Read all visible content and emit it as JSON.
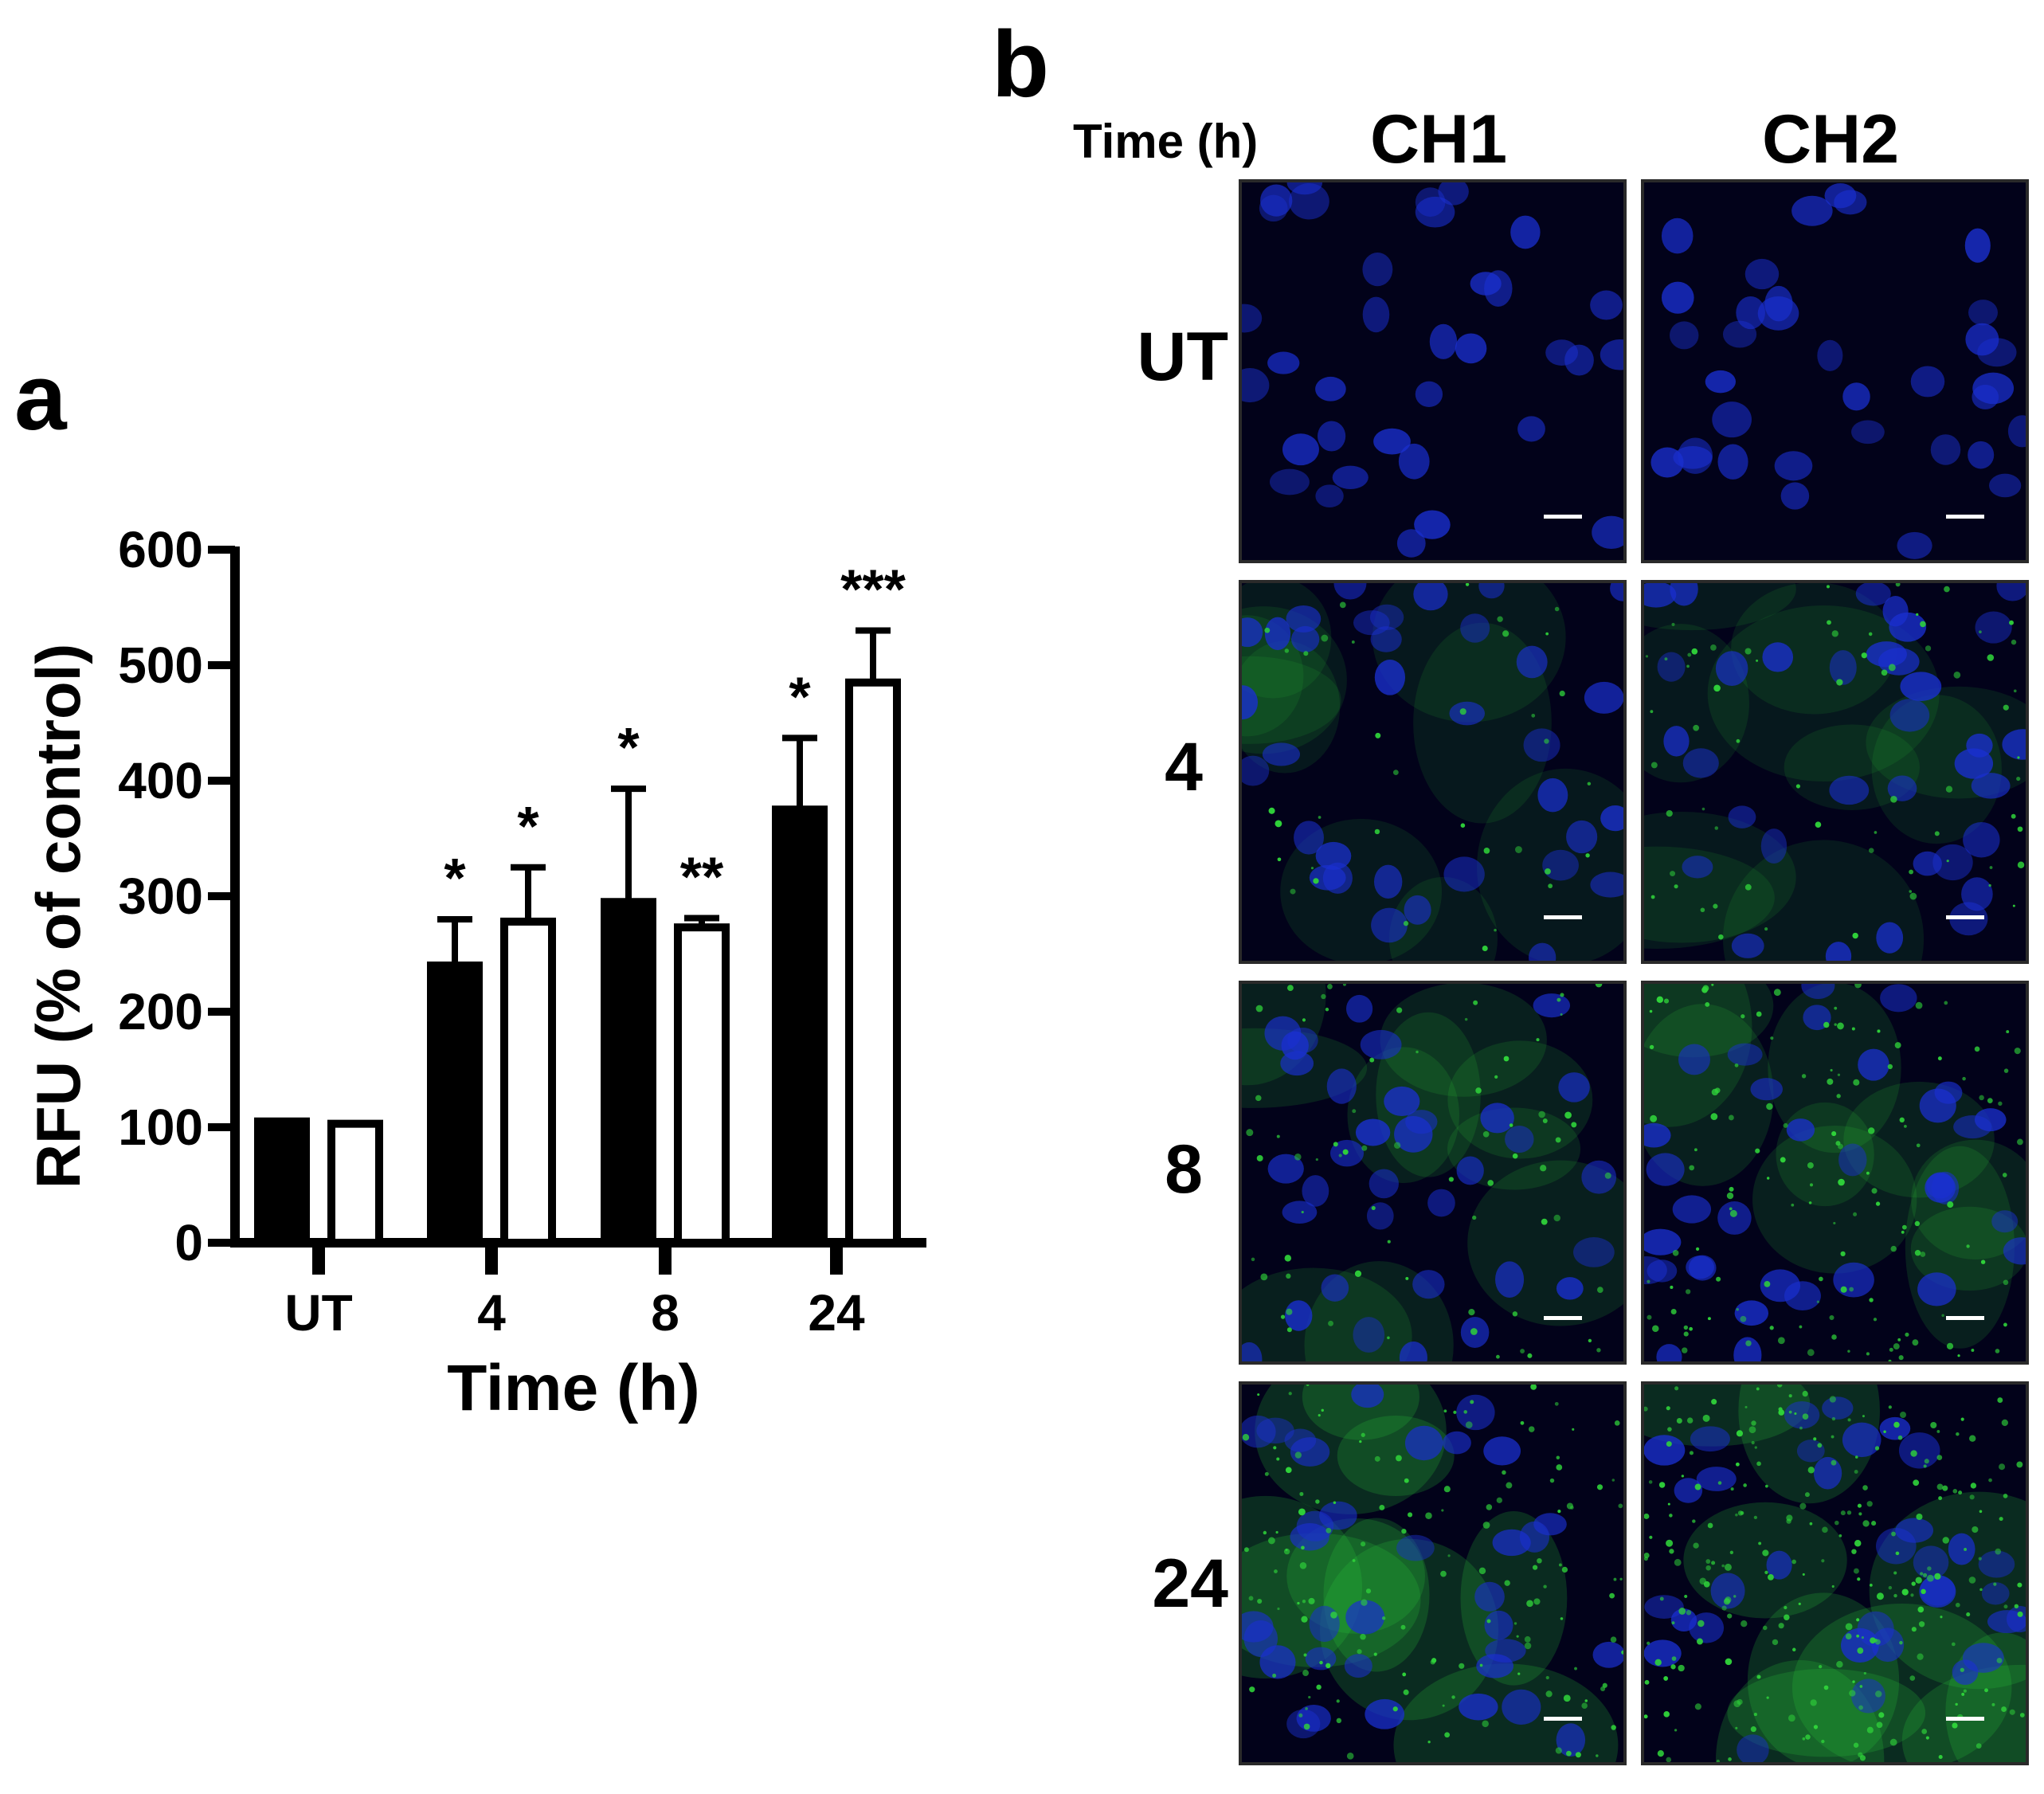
{
  "panel_a": {
    "letter": "a"
  },
  "panel_b": {
    "letter": "b",
    "time_header": "Time (h)",
    "columns": [
      "CH1",
      "CH2"
    ],
    "rows": [
      "UT",
      "4",
      "8",
      "24"
    ]
  },
  "colors": {
    "bar_ch1": "#000000",
    "bar_ch2": "#ffffff",
    "nuclei_blue": "#1a2fd0",
    "marker_green": "#2fd23a",
    "tile_background": "#02021a"
  },
  "chart_data": {
    "type": "bar",
    "categories": [
      "UT",
      "4",
      "8",
      "24"
    ],
    "series": [
      {
        "values": [
          105,
          240,
          295,
          375
        ],
        "errors": [
          0,
          40,
          98,
          62
        ],
        "significance": [
          "",
          "*",
          "*",
          "*"
        ],
        "fill": "black"
      },
      {
        "values": [
          103,
          278,
          273,
          485
        ],
        "errors": [
          0,
          47,
          8,
          45
        ],
        "significance": [
          "",
          "*",
          "**",
          "***"
        ],
        "fill": "white"
      }
    ],
    "xlabel": "Time (h)",
    "ylabel": "RFU (% of control)",
    "ylim": [
      0,
      600
    ],
    "yticks": [
      0,
      100,
      200,
      300,
      400,
      500,
      600
    ],
    "grid": false,
    "legend": "none"
  }
}
